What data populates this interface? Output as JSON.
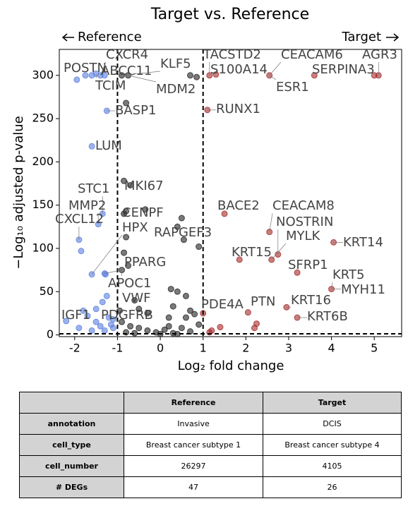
{
  "chart_data": {
    "type": "scatter",
    "title": "Target vs. Reference",
    "xlabel": "Log₂ fold change",
    "ylabel": "−Log₁₀ adjusted p-value",
    "direction_labels": {
      "left": "Reference",
      "right": "Target"
    },
    "xlim": [
      -2.36,
      5.64
    ],
    "ylim": [
      -2,
      330
    ],
    "xticks": [
      -2,
      -1,
      0,
      1,
      2,
      3,
      4,
      5
    ],
    "yticks": [
      0,
      50,
      100,
      150,
      200,
      250,
      300
    ],
    "vlines": [
      -1,
      1
    ],
    "hline": 1.3,
    "series": [
      {
        "color": "#5b7fe0",
        "x": [
          -1.95,
          -1.75,
          -1.6,
          -1.5,
          -1.4,
          -1.3,
          -1.25,
          -1.6,
          -1.35,
          -1.45,
          -1.9,
          -1.85,
          -1.6,
          -1.3,
          -1.28,
          -1.25,
          -1.35,
          -1.8,
          -2.2,
          -1.7,
          -1.5,
          -1.4,
          -1.6,
          -1.3,
          -1.1,
          -1.2,
          -1.1,
          -1.9,
          -1.5,
          -1.15
        ],
        "y": [
          295,
          300,
          300,
          302,
          300,
          300,
          259,
          218,
          140,
          128,
          110,
          97,
          70,
          71,
          70,
          45,
          38,
          28,
          16,
          22,
          15,
          10,
          5,
          5,
          8,
          20,
          18,
          8,
          30,
          12
        ]
      },
      {
        "color": "#222222",
        "x": [
          -0.9,
          -0.75,
          0.7,
          0.85,
          -0.8,
          -0.85,
          -0.7,
          -0.8,
          -0.85,
          -0.35,
          0.5,
          0.4,
          0.55,
          0.9,
          -0.8,
          -0.85,
          -0.75,
          -0.9,
          0.25,
          0.4,
          0.6,
          -0.6,
          -0.5,
          -0.3,
          0.3,
          0.7,
          0.2,
          0.6,
          -0.9,
          -0.7,
          -0.5,
          -0.3,
          -0.1,
          0.1,
          0.3,
          0.5,
          0.7,
          0.9,
          -0.8,
          0,
          0.4,
          -0.6,
          0.8,
          -0.95,
          0.2
        ],
        "y": [
          300,
          300,
          300,
          298,
          268,
          178,
          173,
          143,
          140,
          145,
          135,
          125,
          110,
          102,
          113,
          95,
          80,
          75,
          53,
          50,
          45,
          40,
          30,
          25,
          33,
          28,
          20,
          20,
          15,
          10,
          8,
          5,
          3,
          6,
          2,
          8,
          4,
          12,
          3,
          1,
          1,
          2,
          24,
          28,
          10
        ]
      },
      {
        "color": "#a52a2a",
        "x": [
          1.15,
          1.3,
          2.55,
          3.6,
          5.0,
          5.1,
          1.1,
          1.5,
          2.55,
          2.75,
          4.05,
          2.6,
          1.85,
          3.2,
          4.0,
          2.95,
          3.2,
          2.05,
          2.25,
          2.2,
          1.4,
          1.0,
          1.15,
          1.2
        ],
        "y": [
          300,
          301,
          300,
          300,
          300,
          300,
          260,
          140,
          119,
          93,
          107,
          87,
          87,
          72,
          53,
          32,
          20,
          26,
          13,
          8,
          9,
          25,
          3,
          5
        ]
      }
    ],
    "annotations": [
      {
        "text": "POSTN",
        "x": -1.95,
        "y": 295
      },
      {
        "text": "CXCR4",
        "x": -1.4,
        "y": 300
      },
      {
        "text": "ABCC11",
        "x": -1.3,
        "y": 300
      },
      {
        "text": "KLF5",
        "x": -0.9,
        "y": 300
      },
      {
        "text": "TCIM",
        "x": -1.5,
        "y": 302
      },
      {
        "text": "MDM2",
        "x": -0.75,
        "y": 300
      },
      {
        "text": "BASP1",
        "x": -1.25,
        "y": 259
      },
      {
        "text": "LUM",
        "x": -1.6,
        "y": 218
      },
      {
        "text": "STC1",
        "x": -1.35,
        "y": 140
      },
      {
        "text": "MKI67",
        "x": -0.85,
        "y": 178
      },
      {
        "text": "MMP2",
        "x": -1.45,
        "y": 128
      },
      {
        "text": "CENPF",
        "x": -0.8,
        "y": 143
      },
      {
        "text": "CXCL12",
        "x": -1.9,
        "y": 110
      },
      {
        "text": "HPX",
        "x": -1.6,
        "y": 70
      },
      {
        "text": "RAPGEF3",
        "x": 0.55,
        "y": 110
      },
      {
        "text": "PPARG",
        "x": -1.3,
        "y": 71
      },
      {
        "text": "APOC1",
        "x": -0.9,
        "y": 75
      },
      {
        "text": "VWF",
        "x": -0.85,
        "y": 40
      },
      {
        "text": "IGF1",
        "x": -2.2,
        "y": 16
      },
      {
        "text": "PDGFRB",
        "x": -1.2,
        "y": 20
      },
      {
        "text": "TACSTD2",
        "x": 1.15,
        "y": 300
      },
      {
        "text": "CEACAM6",
        "x": 2.55,
        "y": 300
      },
      {
        "text": "AGR3",
        "x": 5.1,
        "y": 300
      },
      {
        "text": "S100A14",
        "x": 1.3,
        "y": 301
      },
      {
        "text": "SERPINA3",
        "x": 5.0,
        "y": 300
      },
      {
        "text": "ESR1",
        "x": 2.55,
        "y": 300
      },
      {
        "text": "RUNX1",
        "x": 1.1,
        "y": 260
      },
      {
        "text": "BACE2",
        "x": 1.5,
        "y": 140
      },
      {
        "text": "CEACAM8",
        "x": 2.55,
        "y": 119
      },
      {
        "text": "NOSTRIN",
        "x": 2.75,
        "y": 93
      },
      {
        "text": "MYLK",
        "x": 2.6,
        "y": 87
      },
      {
        "text": "KRT14",
        "x": 4.05,
        "y": 107
      },
      {
        "text": "KRT15",
        "x": 1.85,
        "y": 87
      },
      {
        "text": "SFRP1",
        "x": 3.2,
        "y": 72
      },
      {
        "text": "KRT5",
        "x": 4.0,
        "y": 53
      },
      {
        "text": "MYH11",
        "x": 4.0,
        "y": 53
      },
      {
        "text": "PDE4A",
        "x": 1.0,
        "y": 25
      },
      {
        "text": "PTN",
        "x": 2.05,
        "y": 26
      },
      {
        "text": "KRT16",
        "x": 2.95,
        "y": 32
      },
      {
        "text": "KRT6B",
        "x": 3.2,
        "y": 20
      }
    ]
  },
  "table": {
    "columns": [
      "Reference",
      "Target"
    ],
    "rows": [
      [
        "annotation",
        "Invasive",
        "DCIS"
      ],
      [
        "cell_type",
        "Breast cancer subtype 1",
        "Breast cancer subtype 4"
      ],
      [
        "cell_number",
        26297,
        4105
      ],
      [
        "# DEGs",
        47,
        26
      ]
    ]
  }
}
